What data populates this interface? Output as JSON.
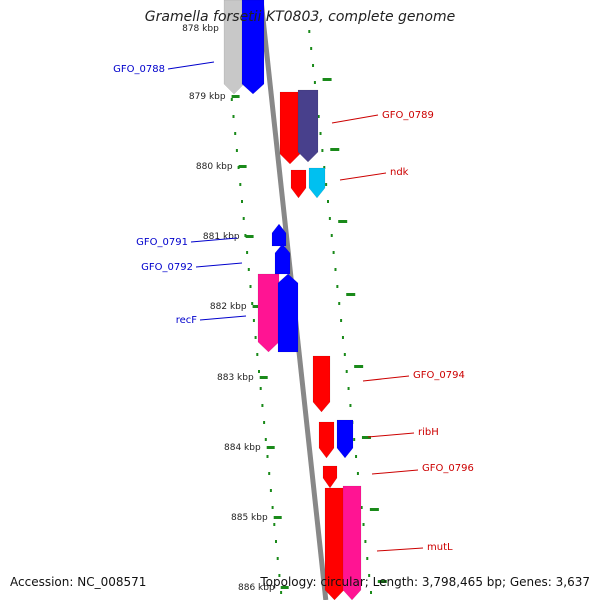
{
  "title": "Gramella forsetii KT0803, complete genome",
  "footer": {
    "accession": "Accession: NC_008571",
    "summary": "Topology: circular; Length: 3,798,465 bp; Genes: 3,637"
  },
  "colors": {
    "backbone": "#888888",
    "tick": "#1a8a1a",
    "label_plus": "#0000cc",
    "label_minus": "#cc0000",
    "gene_red": "#ff0000",
    "gene_blue": "#0000ff",
    "gene_navy": "#48408c",
    "gene_cyan": "#00c0f0",
    "gene_pink": "#ff1493",
    "gene_gray": "#c8c8c8"
  },
  "scale_labels": [
    "878 kbp",
    "879 kbp",
    "880 kbp",
    "881 kbp",
    "882 kbp",
    "883 kbp",
    "884 kbp",
    "885 kbp",
    "886 kbp"
  ],
  "genes": [
    {
      "name": "GFO_0788",
      "side": "left"
    },
    {
      "name": "GFO_0789",
      "side": "right"
    },
    {
      "name": "ndk",
      "side": "right"
    },
    {
      "name": "GFO_0791",
      "side": "left"
    },
    {
      "name": "GFO_0792",
      "side": "left"
    },
    {
      "name": "recF",
      "side": "left"
    },
    {
      "name": "GFO_0794",
      "side": "right"
    },
    {
      "name": "ribH",
      "side": "right"
    },
    {
      "name": "GFO_0796",
      "side": "right"
    },
    {
      "name": "mutL",
      "side": "right"
    }
  ]
}
